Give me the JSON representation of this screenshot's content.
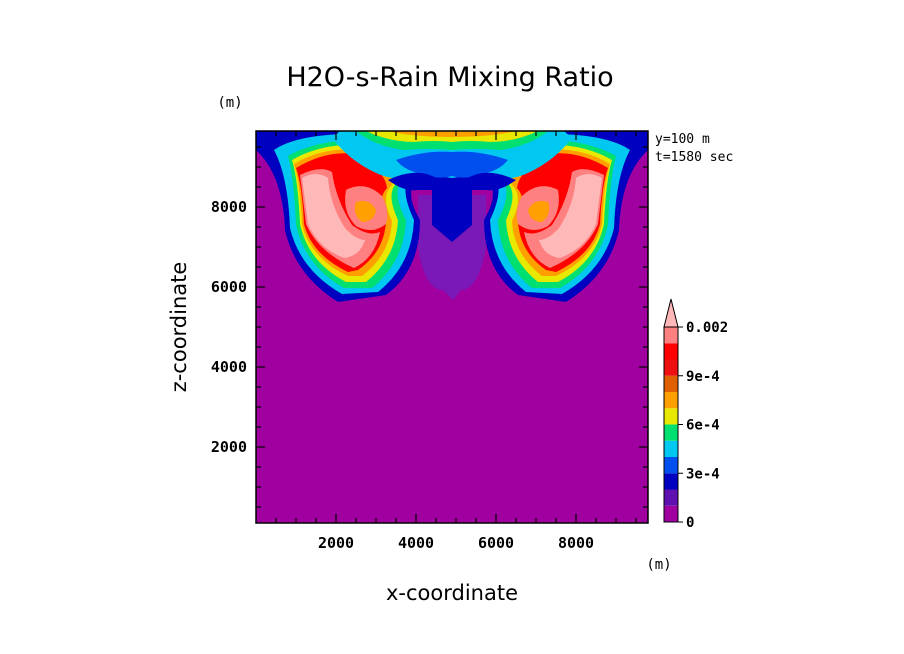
{
  "chart_data": {
    "type": "heatmap",
    "title": "H2O-s-Rain Mixing Ratio",
    "xlabel": "x-coordinate",
    "ylabel": "z-coordinate",
    "x_unit": "(m)",
    "y_unit": "(m)",
    "info": [
      "y=100 m",
      "t=1580 sec"
    ],
    "xlim": [
      0,
      9800
    ],
    "ylim": [
      100,
      9900
    ],
    "x_ticks": [
      2000,
      4000,
      6000,
      8000
    ],
    "y_ticks": [
      2000,
      4000,
      6000,
      8000
    ],
    "x_tick_labels": [
      "2000",
      "4000",
      "6000",
      "8000"
    ],
    "y_tick_labels": [
      "2000",
      "4000",
      "6000",
      "8000"
    ],
    "colorbar": {
      "levels": [
        0,
        0.0001,
        0.0002,
        0.0003,
        0.0004,
        0.0005,
        0.0006,
        0.0007,
        0.0008,
        0.0009,
        0.001,
        0.0015,
        0.002
      ],
      "colors": [
        "#a000a0",
        "#6010b0",
        "#0000c0",
        "#0050f0",
        "#00c8f0",
        "#00e070",
        "#e8e800",
        "#ffa000",
        "#e06000",
        "#ee1010",
        "#ff0000",
        "#ff8080",
        "#ffb8b8"
      ],
      "tick_values": [
        0,
        0.0003,
        0.0006,
        0.0009,
        0.002
      ],
      "tick_labels": [
        "0",
        "3e-4",
        "6e-4",
        "9e-4",
        "0.002"
      ],
      "extend": "max"
    },
    "features": [
      {
        "name": "left-rotor",
        "x_center": 2300,
        "z_center": 7400,
        "peak": 0.002
      },
      {
        "name": "right-rotor",
        "x_center": 7700,
        "z_center": 7400,
        "peak": 0.002
      },
      {
        "name": "central-downdraft",
        "x_center": 5000,
        "z_min": 5700,
        "z_max": 9000,
        "value_range": [
          0.0001,
          0.0003
        ]
      },
      {
        "name": "cap",
        "z_range": [
          9000,
          9900
        ],
        "value_range": [
          0.0004,
          0.0007
        ]
      }
    ],
    "background_value": 0,
    "grid": false,
    "legend": "right"
  }
}
